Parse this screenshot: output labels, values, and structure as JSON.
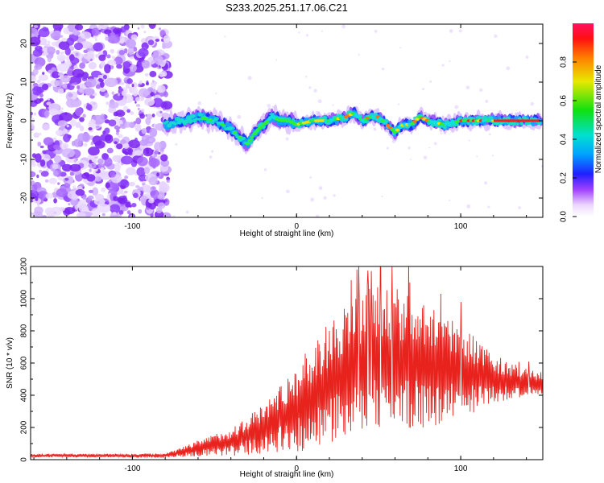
{
  "title": "S233.2025.251.17.06.C21",
  "spectrogram": {
    "type": "heatmap",
    "xlabel": "Height of straight line (km)",
    "ylabel": "Frequency (Hz)",
    "xlim": [
      -162,
      150
    ],
    "ylim": [
      -25,
      25
    ],
    "xticks": [
      -100,
      0,
      100
    ],
    "yticks": [
      -20,
      -10,
      0,
      10,
      20
    ],
    "noise_region_end_km": -80,
    "ridge": {
      "x": [
        -80,
        -70,
        -60,
        -50,
        -40,
        -35,
        -30,
        -25,
        -20,
        -15,
        -10,
        -5,
        0,
        10,
        20,
        30,
        35,
        40,
        45,
        50,
        55,
        60,
        65,
        70,
        75,
        80,
        90,
        100,
        110,
        120,
        130,
        140,
        148
      ],
      "y": [
        -1,
        0,
        1,
        0,
        -2,
        -4,
        -6,
        -3,
        -1,
        1,
        0,
        0,
        -1,
        0,
        0,
        1,
        2,
        0,
        1,
        1,
        -1,
        -3,
        -1,
        -1,
        1,
        0,
        -1,
        0,
        0,
        0,
        0,
        0,
        0
      ]
    }
  },
  "colorbar": {
    "label": "Normalized spectral amplitude",
    "ticks": [
      "0.0",
      "0.2",
      "0.4",
      "0.6",
      "0.8"
    ],
    "range": [
      0,
      1
    ]
  },
  "chart_data": [
    {
      "type": "heatmap",
      "title": "S233.2025.251.17.06.C21",
      "xlabel": "Height of straight line (km)",
      "ylabel": "Frequency (Hz)",
      "xlim": [
        -162,
        150
      ],
      "ylim": [
        -25,
        25
      ],
      "colorbar_label": "Normalized spectral amplitude",
      "colorbar_range": [
        0,
        1
      ]
    },
    {
      "type": "line",
      "xlabel": "Height of straight line (km)",
      "ylabel": "SNR (10 * v/v)",
      "xlim": [
        -162,
        150
      ],
      "ylim": [
        0,
        1200
      ],
      "xticks": [
        -100,
        0,
        100
      ],
      "yticks": [
        0,
        200,
        400,
        600,
        800,
        1000,
        1200
      ],
      "color": "#e8231e",
      "envelope": {
        "x": [
          -162,
          -110,
          -80,
          -70,
          -60,
          -50,
          -40,
          -30,
          -20,
          -10,
          0,
          10,
          20,
          30,
          40,
          50,
          60,
          70,
          80,
          90,
          100,
          110,
          120,
          130,
          140,
          150
        ],
        "mean": [
          25,
          25,
          25,
          45,
          70,
          90,
          110,
          150,
          190,
          260,
          320,
          390,
          480,
          540,
          600,
          620,
          620,
          600,
          580,
          560,
          540,
          520,
          500,
          490,
          480,
          470
        ],
        "amplitude": [
          12,
          12,
          14,
          30,
          50,
          70,
          90,
          120,
          160,
          210,
          270,
          330,
          380,
          430,
          460,
          470,
          460,
          430,
          380,
          340,
          290,
          230,
          160,
          110,
          90,
          70
        ]
      },
      "peaks": {
        "x": [
          38,
          58,
          69,
          88,
          100
        ],
        "y": [
          1200,
          1200,
          1100,
          1030,
          980
        ]
      }
    }
  ]
}
